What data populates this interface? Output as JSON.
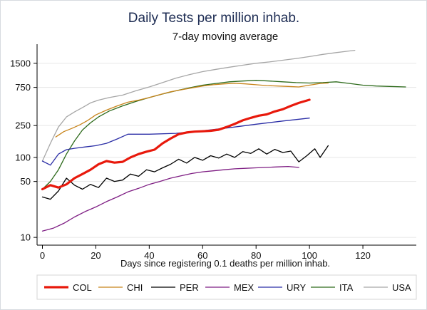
{
  "chart_data": {
    "type": "line",
    "title": "Daily Tests per million inhab.",
    "subtitle": "7-day moving average",
    "xlabel": "Days since registering 0.1 deaths per million inhab.",
    "ylabel": "",
    "yscale": "log",
    "xlim": [
      -2,
      140
    ],
    "ylim": [
      8,
      2600
    ],
    "xticks": [
      0,
      20,
      40,
      60,
      80,
      100,
      120
    ],
    "yticks": [
      10,
      50,
      100,
      250,
      750,
      1500
    ],
    "grid": "horizontal",
    "legend": "bottom",
    "series": [
      {
        "name": "COL",
        "color": "#e8190c",
        "x": [
          0,
          3,
          6,
          9,
          12,
          15,
          18,
          21,
          24,
          27,
          30,
          33,
          36,
          39,
          42,
          45,
          48,
          51,
          54,
          57,
          60,
          63,
          66,
          69,
          72,
          75,
          78,
          81,
          84,
          87,
          90,
          93,
          96,
          100
        ],
        "y": [
          40,
          45,
          42,
          46,
          55,
          62,
          70,
          82,
          90,
          86,
          88,
          100,
          110,
          118,
          125,
          150,
          172,
          195,
          205,
          210,
          212,
          215,
          222,
          240,
          262,
          290,
          312,
          332,
          345,
          375,
          400,
          440,
          480,
          525
        ]
      },
      {
        "name": "CHI",
        "color": "#c8841b",
        "x": [
          5,
          8,
          11,
          14,
          17,
          20,
          24,
          28,
          32,
          36,
          40,
          44,
          48,
          52,
          56,
          60,
          64,
          68,
          72,
          76,
          80,
          84,
          88,
          92,
          96,
          100,
          104,
          107
        ],
        "y": [
          180,
          210,
          230,
          255,
          290,
          340,
          390,
          440,
          490,
          520,
          560,
          610,
          660,
          700,
          740,
          780,
          810,
          830,
          845,
          830,
          810,
          790,
          780,
          770,
          760,
          800,
          840,
          850
        ]
      },
      {
        "name": "PER",
        "color": "#000000",
        "x": [
          0,
          3,
          6,
          9,
          12,
          15,
          18,
          21,
          24,
          27,
          30,
          33,
          36,
          39,
          42,
          45,
          48,
          51,
          54,
          57,
          60,
          63,
          66,
          69,
          72,
          75,
          78,
          81,
          84,
          87,
          90,
          93,
          96,
          99,
          102,
          104,
          107
        ],
        "y": [
          32,
          30,
          38,
          55,
          45,
          40,
          46,
          42,
          55,
          50,
          52,
          62,
          58,
          70,
          66,
          74,
          82,
          95,
          85,
          100,
          92,
          105,
          98,
          110,
          100,
          118,
          112,
          128,
          110,
          126,
          115,
          120,
          88,
          105,
          128,
          100,
          140
        ]
      },
      {
        "name": "MEX",
        "color": "#7e1d83",
        "x": [
          0,
          4,
          8,
          12,
          16,
          20,
          24,
          28,
          32,
          36,
          40,
          44,
          48,
          52,
          56,
          60,
          64,
          68,
          72,
          76,
          80,
          84,
          88,
          92,
          96
        ],
        "y": [
          12,
          13,
          15,
          18,
          21,
          24,
          28,
          32,
          37,
          41,
          46,
          50,
          55,
          59,
          63,
          66,
          68,
          70,
          72,
          73,
          74,
          75,
          76,
          77,
          75
        ]
      },
      {
        "name": "URY",
        "color": "#2b2ea6",
        "x": [
          0,
          3,
          6,
          9,
          12,
          16,
          20,
          24,
          28,
          32,
          40,
          50,
          60,
          70,
          80,
          90,
          100
        ],
        "y": [
          90,
          80,
          110,
          125,
          130,
          135,
          140,
          150,
          170,
          195,
          195,
          200,
          215,
          235,
          260,
          285,
          310
        ]
      },
      {
        "name": "ITA",
        "color": "#2d6a1b",
        "x": [
          0,
          3,
          6,
          9,
          12,
          15,
          18,
          21,
          25,
          30,
          35,
          40,
          45,
          50,
          55,
          60,
          65,
          70,
          75,
          80,
          85,
          90,
          95,
          100,
          105,
          110,
          115,
          120,
          125,
          130,
          136
        ],
        "y": [
          40,
          50,
          70,
          110,
          160,
          220,
          270,
          320,
          380,
          440,
          500,
          560,
          620,
          680,
          740,
          800,
          840,
          880,
          900,
          920,
          900,
          880,
          860,
          850,
          860,
          880,
          840,
          800,
          780,
          770,
          760
        ]
      },
      {
        "name": "USA",
        "color": "#a6a6a6",
        "x": [
          0,
          3,
          6,
          9,
          12,
          15,
          18,
          21,
          25,
          30,
          35,
          40,
          45,
          50,
          55,
          60,
          65,
          70,
          75,
          80,
          85,
          90,
          95,
          100,
          105,
          110,
          115,
          117
        ],
        "y": [
          90,
          150,
          240,
          320,
          370,
          420,
          480,
          520,
          560,
          600,
          680,
          760,
          860,
          980,
          1080,
          1180,
          1260,
          1340,
          1420,
          1500,
          1560,
          1640,
          1720,
          1820,
          1940,
          2040,
          2140,
          2180
        ]
      }
    ]
  }
}
